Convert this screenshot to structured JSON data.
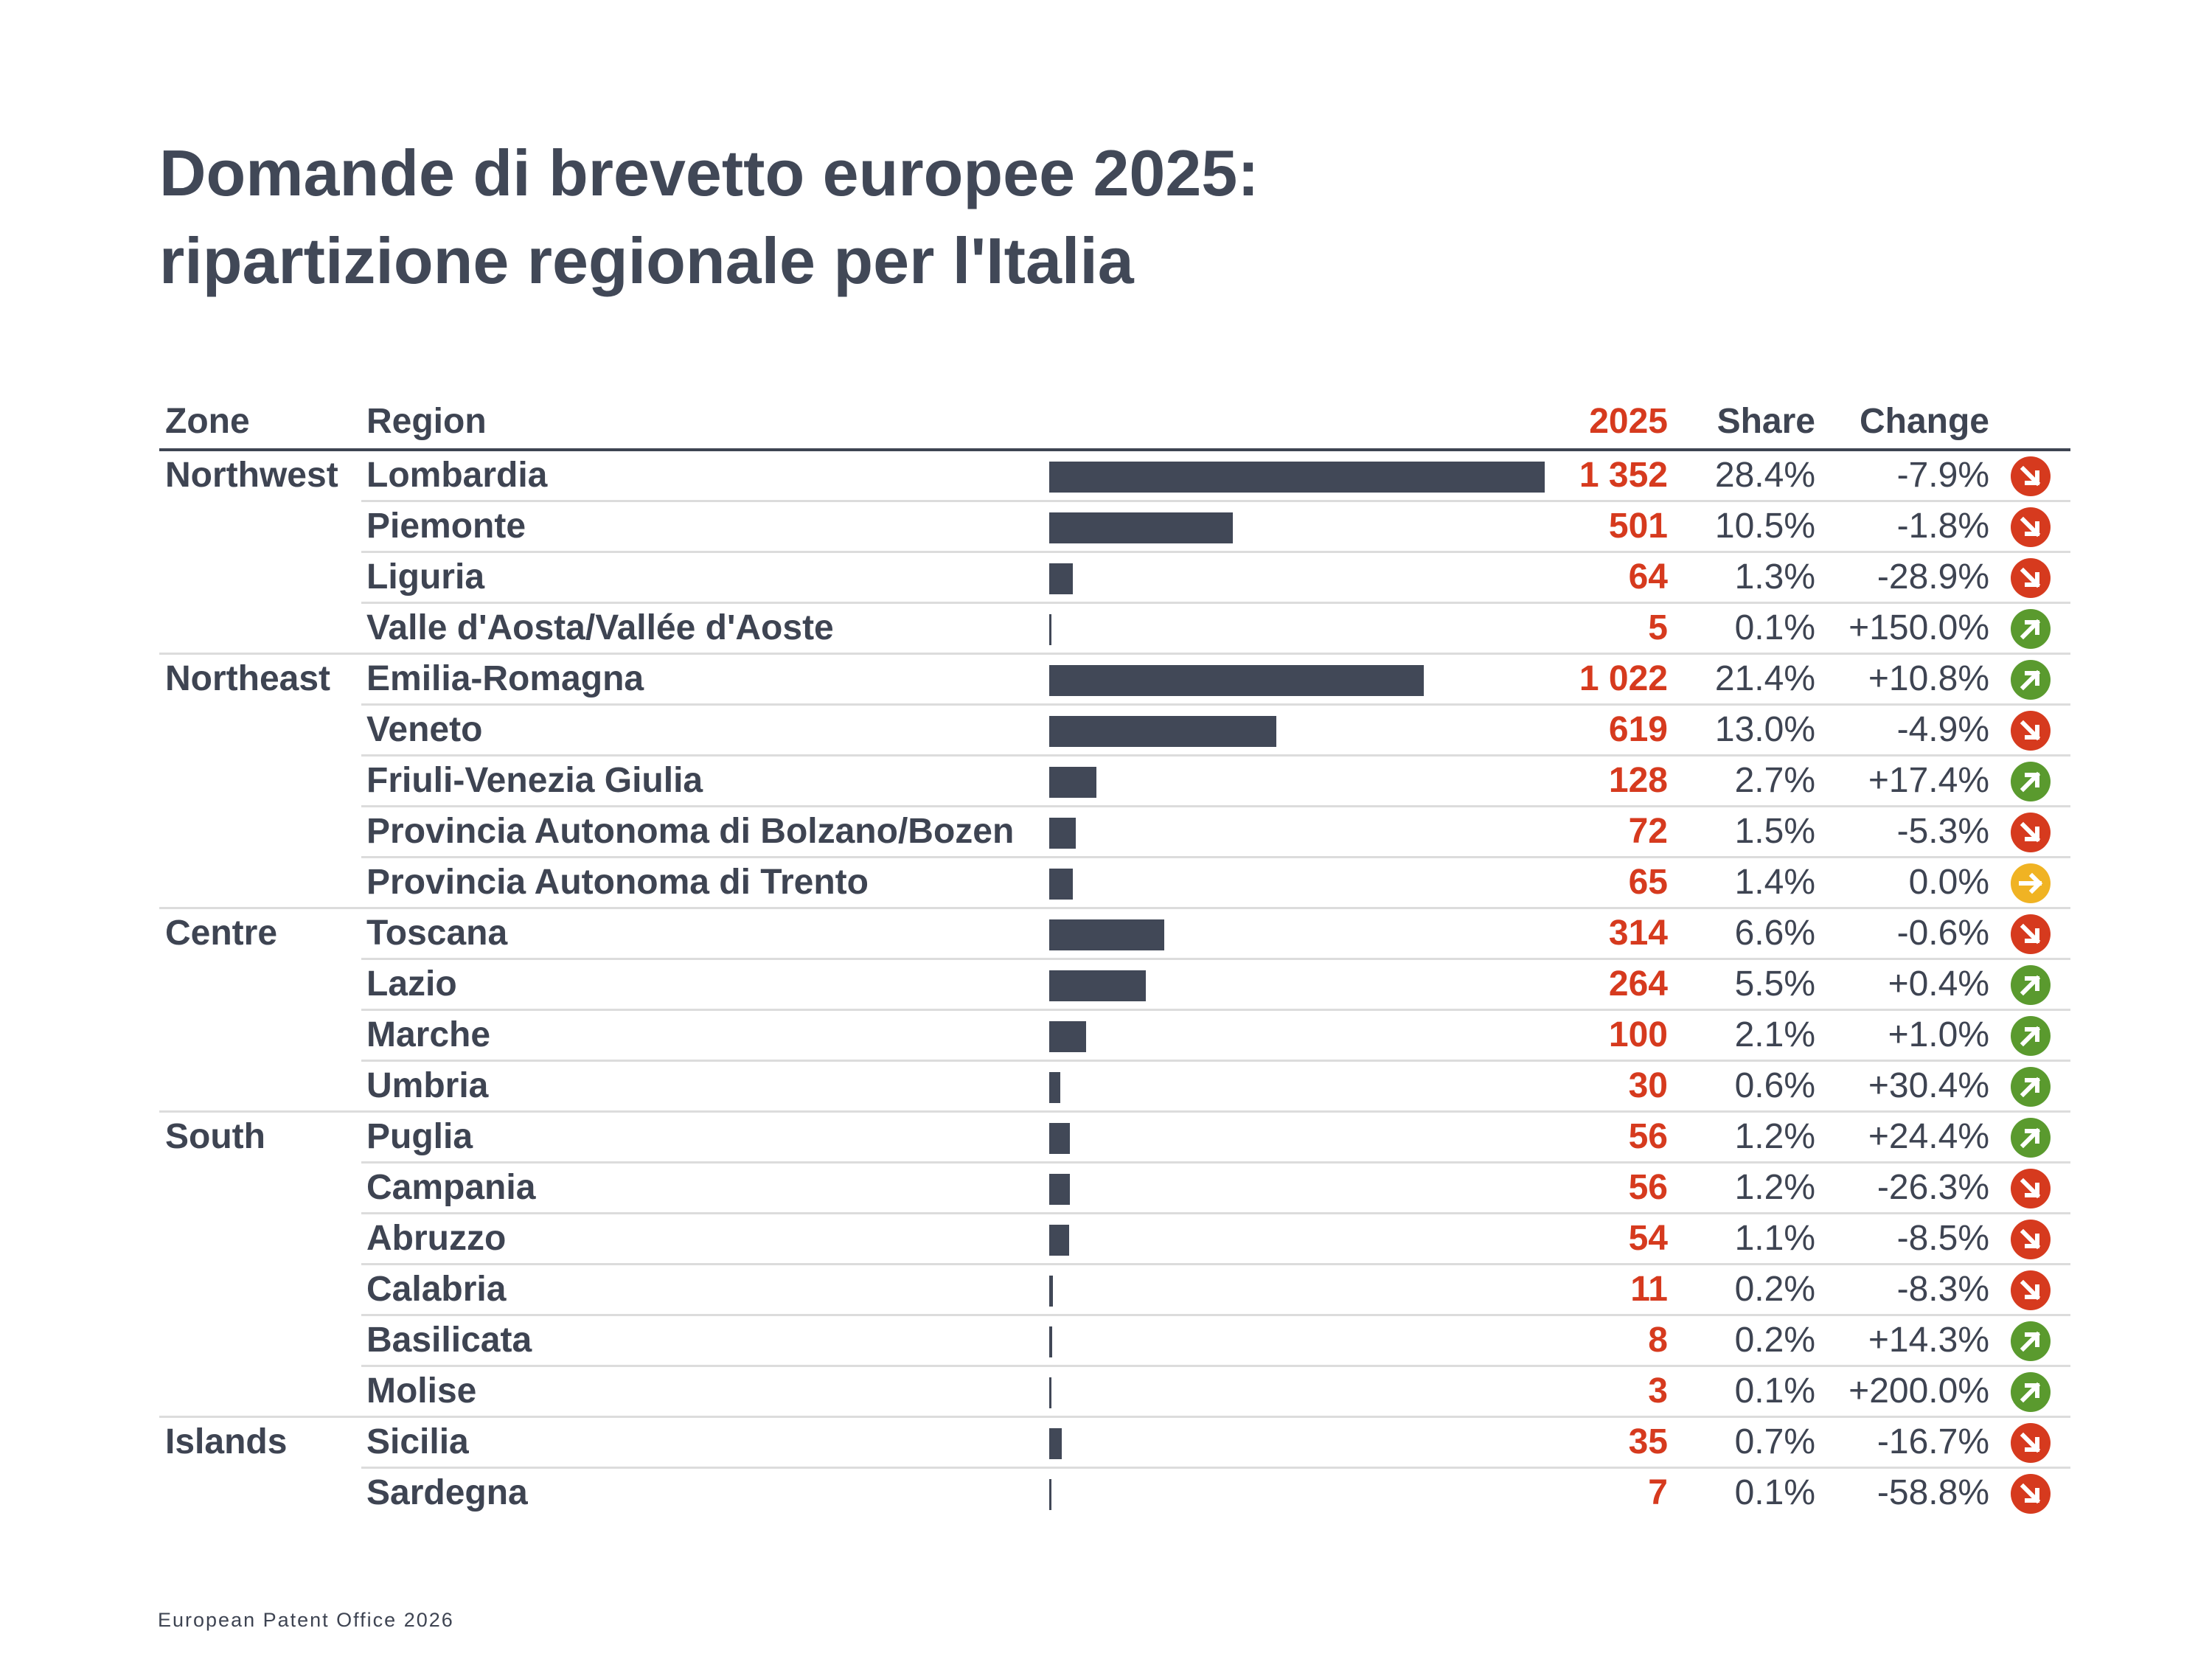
{
  "title_lines": [
    "Domande di brevetto europee 2025:",
    "ripartizione regionale per l'Italia"
  ],
  "headers": {
    "zone": "Zone",
    "region": "Region",
    "value": "2025",
    "share": "Share",
    "change": "Change"
  },
  "source": "European Patent Office 2026",
  "colors": {
    "text": "#3e4452",
    "accent": "#d63a1e",
    "bar": "#414857",
    "up": "#5a9a2e",
    "down": "#d63a1e",
    "flat": "#f0b323"
  },
  "chart_data": {
    "type": "bar",
    "orientation": "horizontal",
    "title": "Domande di brevetto europee 2025: ripartizione regionale per l'Italia",
    "columns": [
      "Zone",
      "Region",
      "2025",
      "Share",
      "Change"
    ],
    "max_value": 1352,
    "rows": [
      {
        "zone": "Northwest",
        "region": "Lombardia",
        "value": 1352,
        "value_label": "1 352",
        "share": "28.4%",
        "change": "-7.9%",
        "trend": "down",
        "trend_icon": "arrow-down-right-icon"
      },
      {
        "zone": "",
        "region": "Piemonte",
        "value": 501,
        "value_label": "501",
        "share": "10.5%",
        "change": "-1.8%",
        "trend": "down",
        "trend_icon": "arrow-down-right-icon"
      },
      {
        "zone": "",
        "region": "Liguria",
        "value": 64,
        "value_label": "64",
        "share": "1.3%",
        "change": "-28.9%",
        "trend": "down",
        "trend_icon": "arrow-down-right-icon"
      },
      {
        "zone": "",
        "region": "Valle d'Aosta/Vallée d'Aoste",
        "value": 5,
        "value_label": "5",
        "share": "0.1%",
        "change": "+150.0%",
        "trend": "up",
        "trend_icon": "arrow-up-right-icon"
      },
      {
        "zone": "Northeast",
        "region": "Emilia-Romagna",
        "value": 1022,
        "value_label": "1 022",
        "share": "21.4%",
        "change": "+10.8%",
        "trend": "up",
        "trend_icon": "arrow-up-right-icon"
      },
      {
        "zone": "",
        "region": "Veneto",
        "value": 619,
        "value_label": "619",
        "share": "13.0%",
        "change": "-4.9%",
        "trend": "down",
        "trend_icon": "arrow-down-right-icon"
      },
      {
        "zone": "",
        "region": "Friuli-Venezia Giulia",
        "value": 128,
        "value_label": "128",
        "share": "2.7%",
        "change": "+17.4%",
        "trend": "up",
        "trend_icon": "arrow-up-right-icon"
      },
      {
        "zone": "",
        "region": "Provincia Autonoma di Bolzano/Bozen",
        "value": 72,
        "value_label": "72",
        "share": "1.5%",
        "change": "-5.3%",
        "trend": "down",
        "trend_icon": "arrow-down-right-icon"
      },
      {
        "zone": "",
        "region": "Provincia Autonoma di Trento",
        "value": 65,
        "value_label": "65",
        "share": "1.4%",
        "change": "0.0%",
        "trend": "flat",
        "trend_icon": "arrow-right-icon"
      },
      {
        "zone": "Centre",
        "region": "Toscana",
        "value": 314,
        "value_label": "314",
        "share": "6.6%",
        "change": "-0.6%",
        "trend": "down",
        "trend_icon": "arrow-down-right-icon"
      },
      {
        "zone": "",
        "region": "Lazio",
        "value": 264,
        "value_label": "264",
        "share": "5.5%",
        "change": "+0.4%",
        "trend": "up",
        "trend_icon": "arrow-up-right-icon"
      },
      {
        "zone": "",
        "region": "Marche",
        "value": 100,
        "value_label": "100",
        "share": "2.1%",
        "change": "+1.0%",
        "trend": "up",
        "trend_icon": "arrow-up-right-icon"
      },
      {
        "zone": "",
        "region": "Umbria",
        "value": 30,
        "value_label": "30",
        "share": "0.6%",
        "change": "+30.4%",
        "trend": "up",
        "trend_icon": "arrow-up-right-icon"
      },
      {
        "zone": "South",
        "region": "Puglia",
        "value": 56,
        "value_label": "56",
        "share": "1.2%",
        "change": "+24.4%",
        "trend": "up",
        "trend_icon": "arrow-up-right-icon"
      },
      {
        "zone": "",
        "region": "Campania",
        "value": 56,
        "value_label": "56",
        "share": "1.2%",
        "change": "-26.3%",
        "trend": "down",
        "trend_icon": "arrow-down-right-icon"
      },
      {
        "zone": "",
        "region": "Abruzzo",
        "value": 54,
        "value_label": "54",
        "share": "1.1%",
        "change": "-8.5%",
        "trend": "down",
        "trend_icon": "arrow-down-right-icon"
      },
      {
        "zone": "",
        "region": "Calabria",
        "value": 11,
        "value_label": "11",
        "share": "0.2%",
        "change": "-8.3%",
        "trend": "down",
        "trend_icon": "arrow-down-right-icon"
      },
      {
        "zone": "",
        "region": "Basilicata",
        "value": 8,
        "value_label": "8",
        "share": "0.2%",
        "change": "+14.3%",
        "trend": "up",
        "trend_icon": "arrow-up-right-icon"
      },
      {
        "zone": "",
        "region": "Molise",
        "value": 3,
        "value_label": "3",
        "share": "0.1%",
        "change": "+200.0%",
        "trend": "up",
        "trend_icon": "arrow-up-right-icon"
      },
      {
        "zone": "Islands",
        "region": "Sicilia",
        "value": 35,
        "value_label": "35",
        "share": "0.7%",
        "change": "-16.7%",
        "trend": "down",
        "trend_icon": "arrow-down-right-icon"
      },
      {
        "zone": "",
        "region": "Sardegna",
        "value": 7,
        "value_label": "7",
        "share": "0.1%",
        "change": "-58.8%",
        "trend": "down",
        "trend_icon": "arrow-down-right-icon"
      }
    ]
  }
}
